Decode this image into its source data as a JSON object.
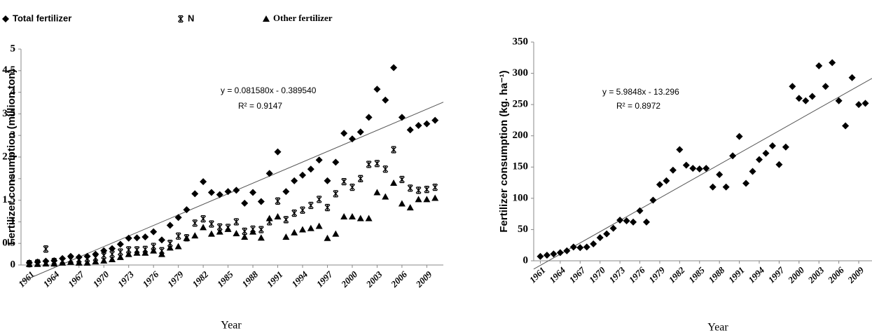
{
  "chart_data": [
    {
      "type": "scatter",
      "y_label": "Fertilizer consumption (million ton)",
      "x_label": "Year",
      "x": [
        1961,
        1962,
        1963,
        1964,
        1965,
        1966,
        1967,
        1968,
        1969,
        1970,
        1971,
        1972,
        1973,
        1974,
        1975,
        1976,
        1977,
        1978,
        1979,
        1980,
        1981,
        1982,
        1983,
        1984,
        1985,
        1986,
        1987,
        1988,
        1989,
        1990,
        1991,
        1992,
        1993,
        1994,
        1995,
        1996,
        1997,
        1998,
        1999,
        2000,
        2001,
        2002,
        2003,
        2004,
        2005,
        2006,
        2007,
        2008,
        2009,
        2010
      ],
      "series": [
        {
          "name": "Total fertilizer",
          "color": "#000000",
          "marker": "diamond",
          "values": [
            0.05,
            0.07,
            0.09,
            0.1,
            0.15,
            0.2,
            0.18,
            0.2,
            0.25,
            0.33,
            0.38,
            0.48,
            0.62,
            0.63,
            0.65,
            0.77,
            0.58,
            0.92,
            1.1,
            1.28,
            1.65,
            1.93,
            1.68,
            1.63,
            1.7,
            1.73,
            1.43,
            1.68,
            1.47,
            2.12,
            2.62,
            1.7,
            1.95,
            2.08,
            2.22,
            2.43,
            1.95,
            2.38,
            3.05,
            2.92,
            3.08,
            3.42,
            4.07,
            3.82,
            4.57,
            3.42,
            3.13,
            3.23,
            3.27,
            3.35
          ]
        },
        {
          "name": "N",
          "color": "#000000",
          "marker": "asterisk",
          "values": [
            0.03,
            0.05,
            0.37,
            0.08,
            0.1,
            0.12,
            0.13,
            0.15,
            0.17,
            0.22,
            0.25,
            0.3,
            0.35,
            0.35,
            0.36,
            0.43,
            0.33,
            0.5,
            0.67,
            0.63,
            0.97,
            1.07,
            0.95,
            0.88,
            0.87,
            1.0,
            0.78,
            0.83,
            0.82,
            1.0,
            1.48,
            1.05,
            1.2,
            1.27,
            1.38,
            1.52,
            1.33,
            1.65,
            1.93,
            1.8,
            2.0,
            2.33,
            2.35,
            2.22,
            2.67,
            1.98,
            1.78,
            1.73,
            1.75,
            1.8
          ]
        },
        {
          "name": "Other fertilizer",
          "color": "#000000",
          "marker": "triangle",
          "values": [
            0.02,
            0.02,
            0.03,
            0.03,
            0.05,
            0.07,
            0.05,
            0.05,
            0.08,
            0.1,
            0.13,
            0.18,
            0.25,
            0.28,
            0.28,
            0.33,
            0.25,
            0.4,
            0.43,
            0.62,
            0.68,
            0.87,
            0.72,
            0.77,
            0.83,
            0.73,
            0.65,
            0.77,
            0.63,
            1.08,
            1.12,
            0.65,
            0.75,
            0.82,
            0.85,
            0.9,
            0.62,
            0.72,
            1.12,
            1.12,
            1.08,
            1.08,
            1.68,
            1.58,
            1.9,
            1.42,
            1.33,
            1.52,
            1.52,
            1.55
          ]
        }
      ],
      "trendline": {
        "equation": "y = 0.081580x - 0.389540",
        "r2": "R² = 0.9147",
        "slope": 0.08158,
        "intercept": -0.38954
      },
      "xlim": [
        1960,
        2011
      ],
      "xticks": [
        1961,
        1964,
        1967,
        1970,
        1973,
        1976,
        1979,
        1982,
        1985,
        1988,
        1991,
        1994,
        1997,
        2000,
        2003,
        2006,
        2009
      ],
      "ylim": [
        0,
        5
      ],
      "yticks": [
        0,
        0.5,
        1,
        1.5,
        2,
        2.5,
        3,
        3.5,
        4,
        4.5,
        5
      ],
      "legend": "top",
      "grid": false
    },
    {
      "type": "scatter",
      "y_label": "Fertilizer consumption (kg. ha⁻¹)",
      "x_label": "Year",
      "x": [
        1961,
        1962,
        1963,
        1964,
        1965,
        1966,
        1967,
        1968,
        1969,
        1970,
        1971,
        1972,
        1973,
        1974,
        1975,
        1976,
        1977,
        1978,
        1979,
        1980,
        1981,
        1982,
        1983,
        1984,
        1985,
        1986,
        1987,
        1988,
        1989,
        1990,
        1991,
        1992,
        1993,
        1994,
        1995,
        1996,
        1997,
        1998,
        1999,
        2000,
        2001,
        2002,
        2003,
        2004,
        2005,
        2006,
        2007,
        2008,
        2009,
        2010
      ],
      "series": [
        {
          "color": "#000000",
          "marker": "diamond",
          "values": [
            7,
            9,
            11,
            13,
            16,
            22,
            21,
            22,
            27,
            37,
            43,
            52,
            65,
            64,
            62,
            80,
            62,
            97,
            122,
            128,
            145,
            178,
            153,
            148,
            147,
            148,
            118,
            138,
            118,
            168,
            199,
            124,
            143,
            162,
            172,
            184,
            154,
            182,
            279,
            260,
            256,
            263,
            312,
            279,
            317,
            256,
            216,
            293,
            250,
            252
          ]
        }
      ],
      "trendline": {
        "equation": "y = 5.9848x - 13.296",
        "r2": "R² = 0.8972",
        "slope": 5.9848,
        "intercept": -13.296
      },
      "xlim": [
        1960,
        2011
      ],
      "xticks": [
        1961,
        1964,
        1967,
        1970,
        1973,
        1976,
        1979,
        1982,
        1985,
        1988,
        1991,
        1994,
        1997,
        2000,
        2003,
        2006,
        2009
      ],
      "ylim": [
        0,
        350
      ],
      "yticks": [
        0,
        50,
        100,
        150,
        200,
        250,
        300,
        350
      ],
      "grid": false
    }
  ]
}
